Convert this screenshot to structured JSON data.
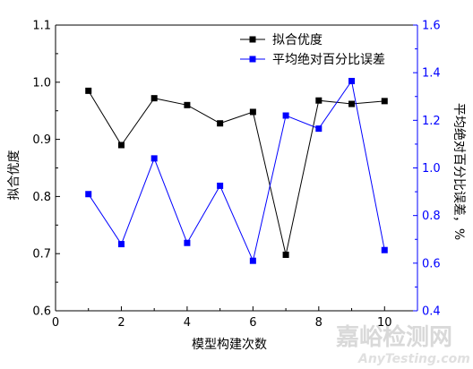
{
  "chart_data": {
    "type": "line",
    "xlabel": "模型构建次数",
    "ylabel": "拟合优度",
    "y2label": "平均绝对百分比误差，%",
    "xlim": [
      0,
      11
    ],
    "ylim": [
      0.6,
      1.1
    ],
    "y2lim": [
      0.4,
      1.6
    ],
    "x_ticks": [
      0,
      2,
      4,
      6,
      8,
      10
    ],
    "y_ticks": [
      0.6,
      0.7,
      0.8,
      0.9,
      1.0,
      1.1
    ],
    "y2_ticks": [
      0.4,
      0.6,
      0.8,
      1.0,
      1.2,
      1.4,
      1.6
    ],
    "x_tick_labels": [
      "0",
      "2",
      "4",
      "6",
      "8",
      "10"
    ],
    "y_tick_labels": [
      "0.6",
      "0.7",
      "0.8",
      "0.9",
      "1.0",
      "1.1"
    ],
    "y2_tick_labels": [
      "0.4",
      "0.6",
      "0.8",
      "1.0",
      "1.2",
      "1.4",
      "1.6"
    ],
    "grid": false,
    "legend_position": "top-right",
    "x": [
      1,
      2,
      3,
      4,
      5,
      6,
      7,
      8,
      9,
      10
    ],
    "series": [
      {
        "name": "拟合优度",
        "axis": "left",
        "color": "#000000",
        "marker": "square",
        "values": [
          0.985,
          0.89,
          0.972,
          0.96,
          0.928,
          0.948,
          0.698,
          0.968,
          0.962,
          0.967
        ]
      },
      {
        "name": "平均绝对百分比误差",
        "axis": "right",
        "color": "#0000ff",
        "marker": "square",
        "values": [
          0.89,
          0.68,
          1.04,
          0.685,
          0.925,
          0.61,
          1.22,
          1.165,
          1.365,
          0.655
        ]
      }
    ]
  },
  "watermark": {
    "text_cn": "嘉峪检测网",
    "text_en": "AnyTesting.com"
  }
}
